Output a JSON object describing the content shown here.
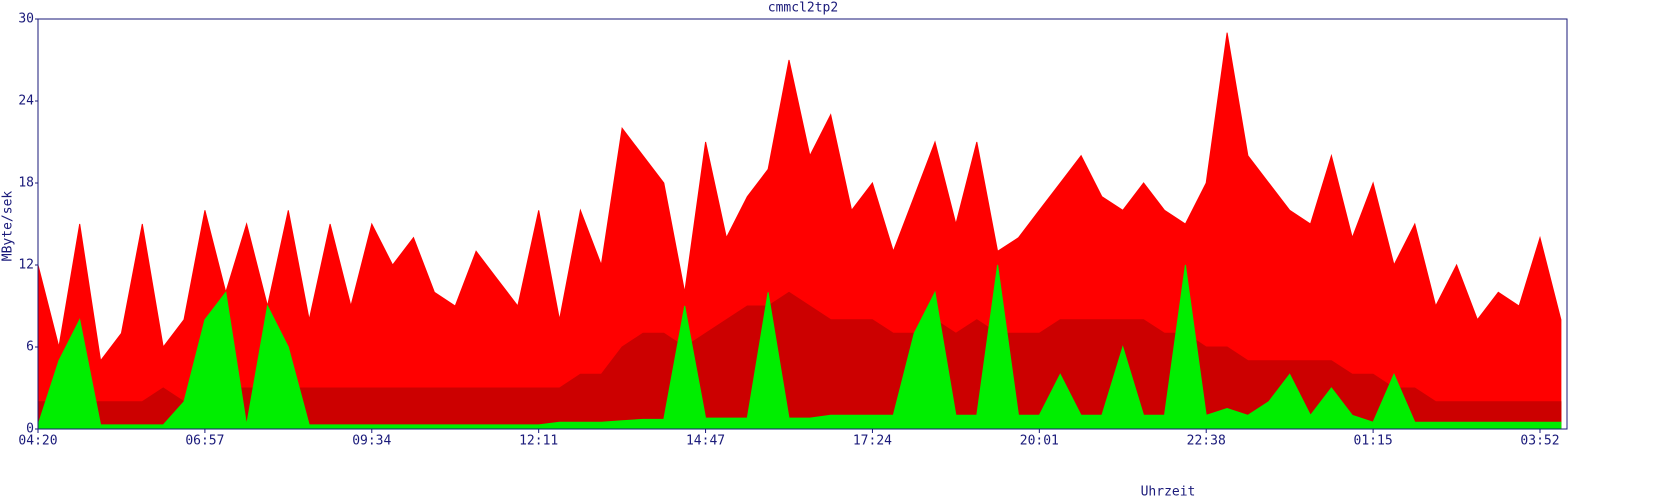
{
  "chart_data": {
    "type": "area",
    "title": "cmmcl2tp2",
    "x_label": "Uhrzeit",
    "y_label": "MByte/sek",
    "x": [
      "04:20",
      null,
      null,
      null,
      null,
      null,
      null,
      null,
      "06:57",
      null,
      null,
      null,
      null,
      null,
      null,
      null,
      "09:34",
      null,
      null,
      null,
      null,
      null,
      null,
      null,
      "12:11",
      null,
      null,
      null,
      null,
      null,
      null,
      null,
      "14:47",
      null,
      null,
      null,
      null,
      null,
      null,
      null,
      "17:24",
      null,
      null,
      null,
      null,
      null,
      null,
      null,
      "20:01",
      null,
      null,
      null,
      null,
      null,
      null,
      null,
      "22:38",
      null,
      null,
      null,
      null,
      null,
      null,
      null,
      "01:15",
      null,
      null,
      null,
      null,
      null,
      null,
      null,
      "03:52",
      null
    ],
    "series": [
      {
        "color": "#ff0000",
        "values": [
          12,
          6,
          15,
          5,
          7,
          15,
          6,
          8,
          16,
          10,
          15,
          9,
          16,
          8,
          15,
          9,
          15,
          12,
          14,
          10,
          9,
          13,
          11,
          9,
          16,
          8,
          16,
          12,
          22,
          20,
          18,
          10,
          21,
          14,
          17,
          19,
          27,
          20,
          23,
          16,
          18,
          13,
          17,
          21,
          15,
          21,
          13,
          14,
          16,
          18,
          20,
          17,
          16,
          18,
          16,
          15,
          18,
          29,
          20,
          18,
          16,
          15,
          20,
          14,
          18,
          12,
          15,
          9,
          12,
          8,
          10,
          9,
          14,
          8
        ]
      },
      {
        "color": "#cc0000",
        "values": [
          2,
          2,
          2,
          2,
          2,
          2,
          3,
          2,
          3,
          3,
          3,
          3,
          3,
          3,
          3,
          3,
          3,
          3,
          3,
          3,
          3,
          3,
          3,
          3,
          3,
          3,
          4,
          4,
          6,
          7,
          7,
          6,
          7,
          8,
          9,
          9,
          10,
          9,
          8,
          8,
          8,
          7,
          7,
          8,
          7,
          8,
          7,
          7,
          7,
          8,
          8,
          8,
          8,
          8,
          7,
          7,
          6,
          6,
          5,
          5,
          5,
          5,
          5,
          4,
          4,
          3,
          3,
          2,
          2,
          2,
          2,
          2,
          2,
          2
        ]
      },
      {
        "color": "#00ee00",
        "values": [
          0.3,
          5,
          8,
          0.3,
          0.3,
          0.3,
          0.3,
          2,
          8,
          10,
          0.3,
          9,
          6,
          0.3,
          0.3,
          0.3,
          0.3,
          0.3,
          0.3,
          0.3,
          0.3,
          0.3,
          0.3,
          0.3,
          0.3,
          0.5,
          0.5,
          0.5,
          0.6,
          0.7,
          0.7,
          9,
          0.8,
          0.8,
          0.8,
          10,
          0.8,
          0.8,
          1,
          1,
          1,
          1,
          7,
          10,
          1,
          1,
          12,
          1,
          1,
          4,
          1,
          1,
          6,
          1,
          1,
          12,
          1,
          1.5,
          1,
          2,
          4,
          1,
          3,
          1,
          0.5,
          4,
          0.5,
          0.5,
          0.5,
          0.5,
          0.5,
          0.5,
          0.5,
          0.5
        ]
      }
    ],
    "ylim": [
      0,
      30
    ],
    "yticks": [
      0,
      6,
      12,
      18,
      24,
      30
    ],
    "grid": false
  }
}
